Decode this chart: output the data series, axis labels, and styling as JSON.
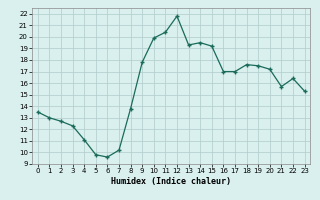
{
  "x": [
    0,
    1,
    2,
    3,
    4,
    5,
    6,
    7,
    8,
    9,
    10,
    11,
    12,
    13,
    14,
    15,
    16,
    17,
    18,
    19,
    20,
    21,
    22,
    23
  ],
  "y": [
    13.5,
    13.0,
    12.7,
    12.3,
    11.1,
    9.8,
    9.6,
    10.2,
    13.8,
    17.8,
    19.9,
    20.4,
    21.8,
    19.3,
    19.5,
    19.2,
    17.0,
    17.0,
    17.6,
    17.5,
    17.2,
    15.7,
    16.4,
    15.3
  ],
  "xlabel": "Humidex (Indice chaleur)",
  "xlim": [
    -0.5,
    23.5
  ],
  "ylim": [
    9,
    22.5
  ],
  "yticks": [
    9,
    10,
    11,
    12,
    13,
    14,
    15,
    16,
    17,
    18,
    19,
    20,
    21,
    22
  ],
  "xticks": [
    0,
    1,
    2,
    3,
    4,
    5,
    6,
    7,
    8,
    9,
    10,
    11,
    12,
    13,
    14,
    15,
    16,
    17,
    18,
    19,
    20,
    21,
    22,
    23
  ],
  "line_color": "#1a6b5a",
  "marker": "+",
  "bg_color": "#d9f0ee",
  "grid_color": "#b0cccb"
}
